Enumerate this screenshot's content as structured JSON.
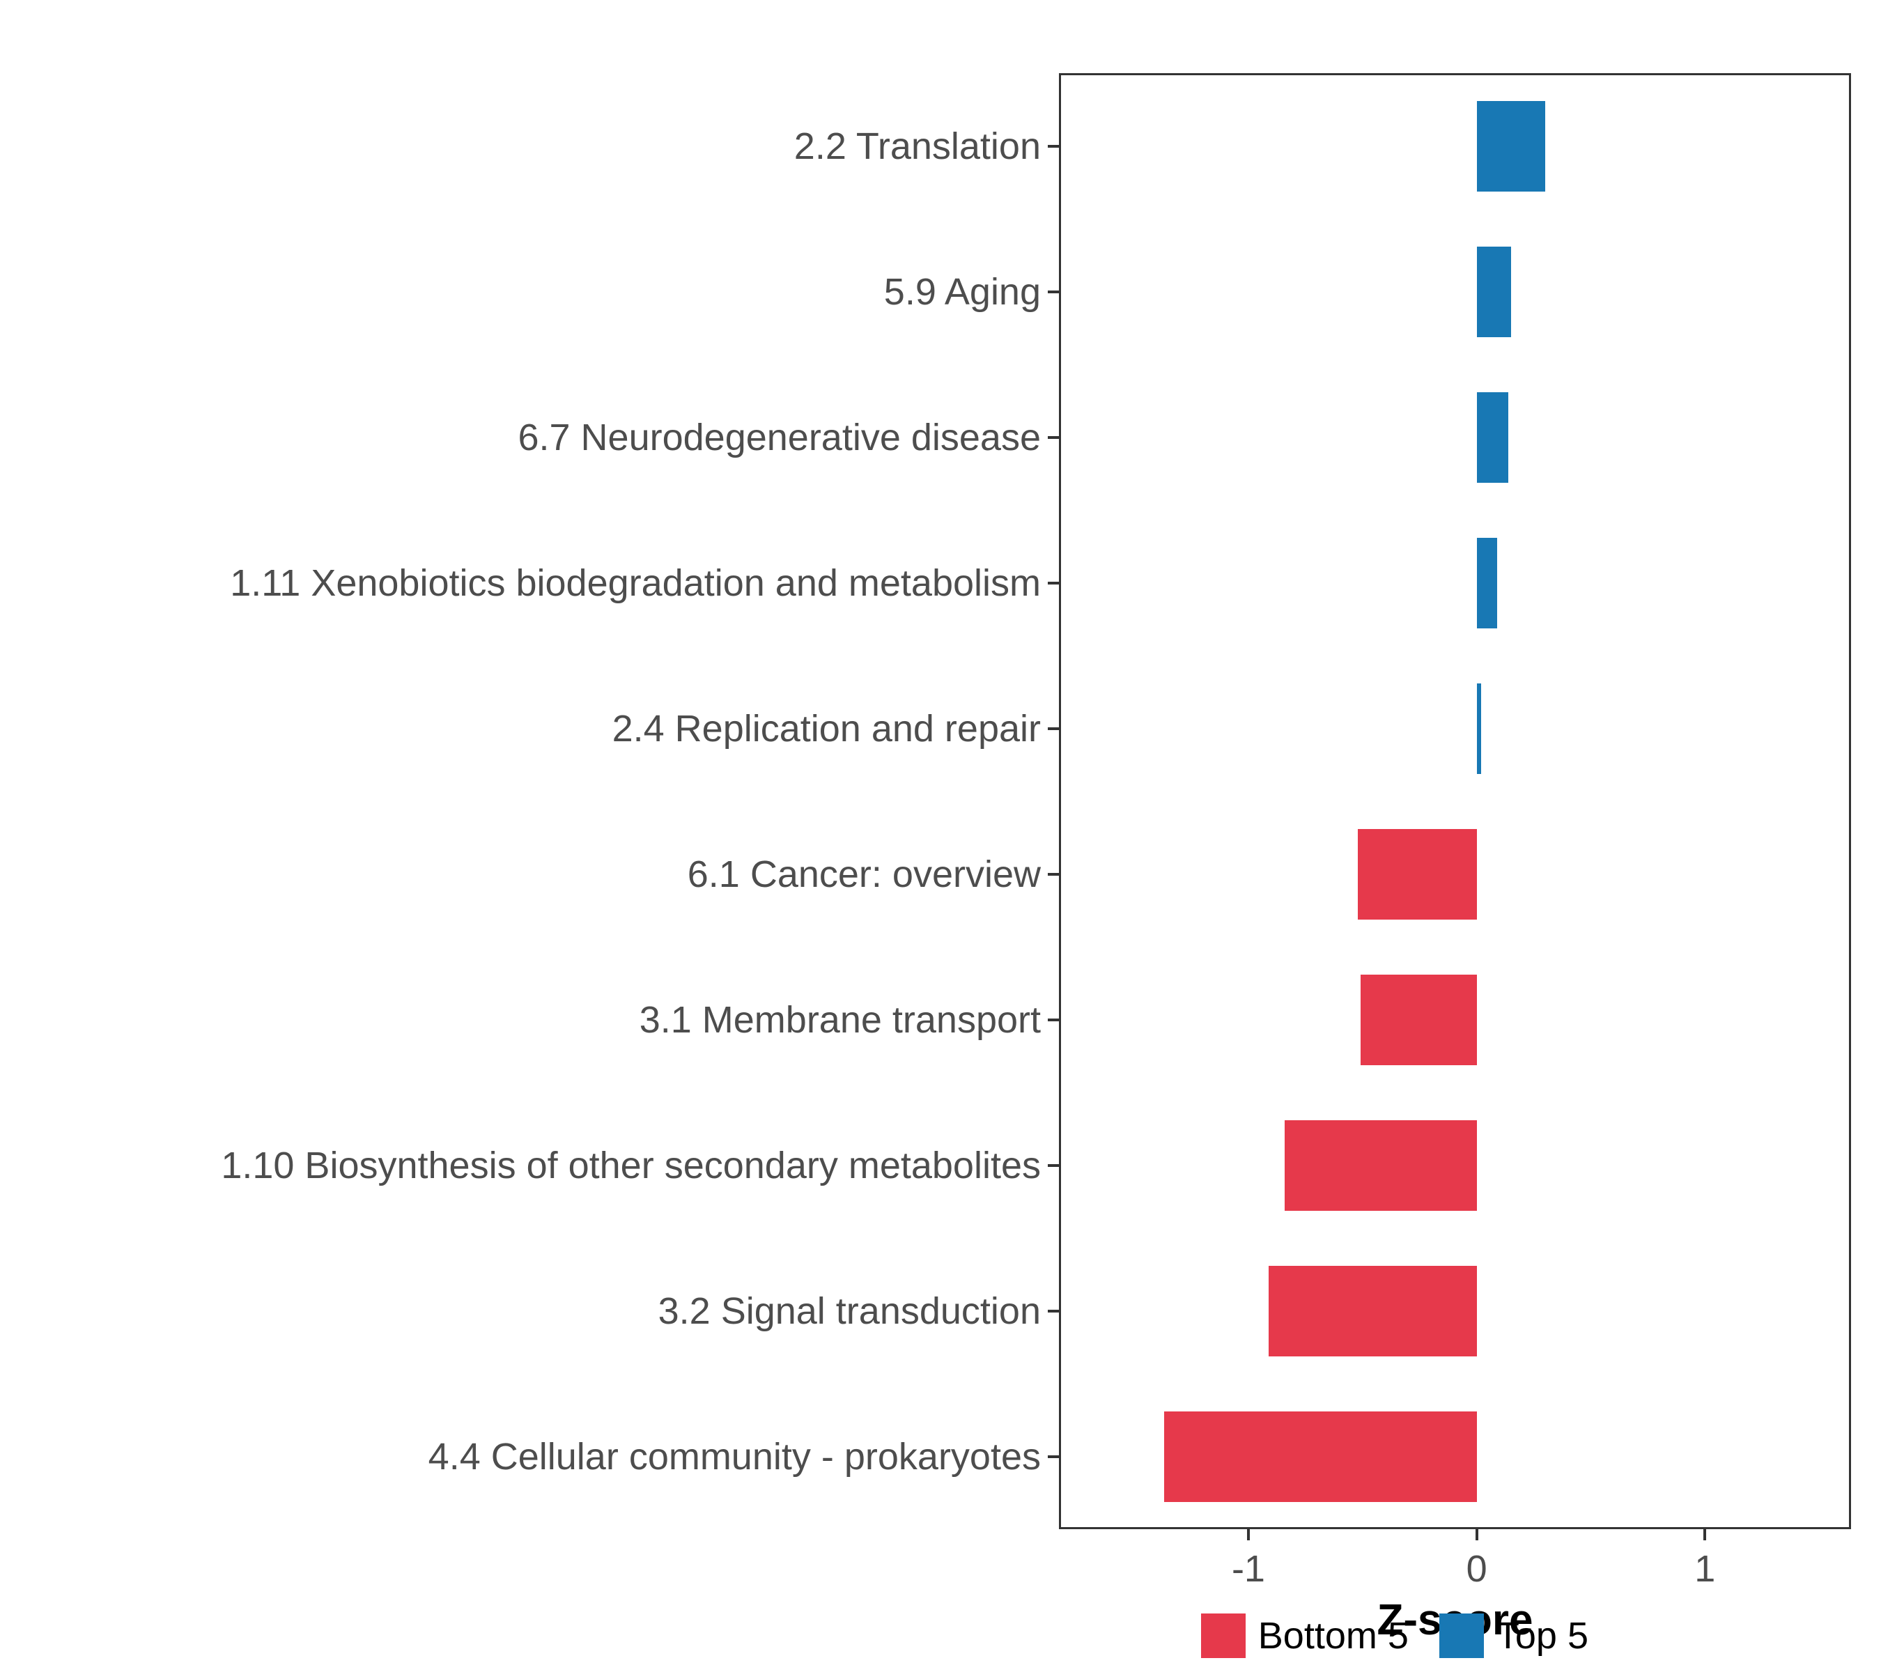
{
  "chart_data": {
    "type": "bar",
    "orientation": "horizontal",
    "title": "",
    "xlabel": "Z-score",
    "xtick_labels": [
      "-1",
      "0",
      "1"
    ],
    "xtick_values": [
      -1,
      0,
      1
    ],
    "xlim": [
      -1.83,
      1.64
    ],
    "grid": false,
    "panel_background": "#FFFFFF",
    "categories": [
      "2.2 Translation",
      "5.9 Aging",
      "6.7 Neurodegenerative disease",
      "1.11 Xenobiotics biodegradation and metabolism",
      "2.4 Replication and repair",
      "6.1 Cancer: overview",
      "3.1 Membrane transport",
      "1.10 Biosynthesis of other secondary metabolites",
      "3.2 Signal transduction",
      "4.4 Cellular community - prokaryotes"
    ],
    "values": [
      0.3,
      0.15,
      0.14,
      0.09,
      0.02,
      -0.52,
      -0.51,
      -0.84,
      -0.91,
      -1.37
    ],
    "groups": [
      "Top 5",
      "Top 5",
      "Top 5",
      "Top 5",
      "Top 5",
      "Bottom 5",
      "Bottom 5",
      "Bottom 5",
      "Bottom 5",
      "Bottom 5"
    ],
    "legend": {
      "position": "bottom-right",
      "entries": [
        {
          "label": "Bottom 5",
          "color": "#E6394B"
        },
        {
          "label": "Top 5",
          "color": "#1878B4"
        }
      ]
    }
  },
  "colors": {
    "top5": "#1878B4",
    "bottom5": "#E6394B",
    "axis_text": "#4D4D4D",
    "axis_line": "#333333",
    "background": "#FFFFFF"
  }
}
